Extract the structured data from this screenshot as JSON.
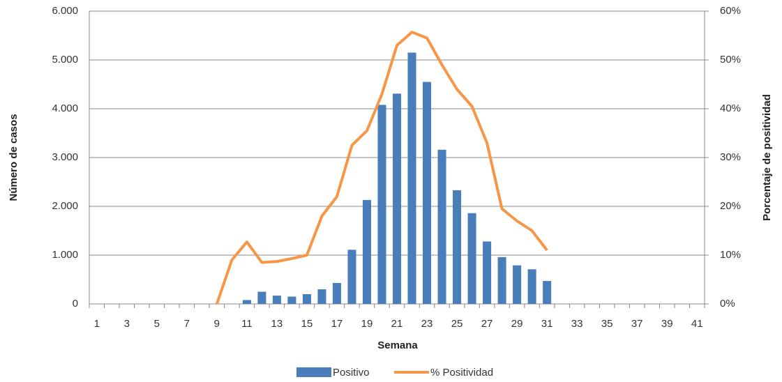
{
  "chart_data": {
    "type": "bar",
    "x_label": "Semana",
    "y_label": "Número de casos",
    "y2_label": "Porcentaje de positividad",
    "categories": [
      "1",
      null,
      "3",
      null,
      "5",
      null,
      "7",
      null,
      "9",
      null,
      "11",
      null,
      "13",
      null,
      "15",
      null,
      "17",
      null,
      "19",
      null,
      "21",
      null,
      "23",
      null,
      "25",
      null,
      "27",
      null,
      "29",
      null,
      "31",
      null,
      "33",
      null,
      "35",
      null,
      "37",
      null,
      "39",
      null,
      "41"
    ],
    "series": [
      {
        "name": "Positivo",
        "type": "bar",
        "color": "#4a7ebb",
        "values": [
          0,
          0,
          0,
          0,
          0,
          0,
          0,
          0,
          0,
          0,
          80,
          250,
          170,
          150,
          200,
          300,
          430,
          1110,
          2130,
          4080,
          4310,
          5150,
          4550,
          3160,
          2330,
          1860,
          1280,
          960,
          790,
          710,
          470,
          null,
          null,
          null,
          null,
          null,
          null,
          null,
          null,
          null,
          null
        ]
      },
      {
        "name": "% Positividad",
        "type": "line",
        "axis": "y2",
        "color": "#f79646",
        "values": [
          null,
          null,
          null,
          null,
          null,
          null,
          null,
          null,
          0,
          9,
          12.7,
          8.5,
          8.7,
          9.3,
          10,
          18,
          22,
          32.5,
          35.5,
          43,
          53,
          55.7,
          54.5,
          49,
          44,
          40.5,
          33,
          19.5,
          17,
          15,
          11,
          null,
          null,
          null,
          null,
          null,
          null,
          null,
          null,
          null,
          null
        ]
      }
    ],
    "ylim": [
      0,
      6000
    ],
    "yticks": [
      0,
      {
        "value": 1000,
        "label": "1.000"
      },
      {
        "value": 2000,
        "label": "2.000"
      },
      {
        "value": 3000,
        "label": "3.000"
      },
      {
        "value": 4000,
        "label": "4.000"
      },
      {
        "value": 5000,
        "label": "5.000"
      },
      {
        "value": 6000,
        "label": "6.000"
      }
    ],
    "y2lim": [
      0,
      60
    ],
    "y2ticks": [
      {
        "value": 0,
        "label": "0%"
      },
      {
        "value": 10,
        "label": "10%"
      },
      {
        "value": 20,
        "label": "20%"
      },
      {
        "value": 30,
        "label": "30%"
      },
      {
        "value": 40,
        "label": "40%"
      },
      {
        "value": 50,
        "label": "50%"
      },
      {
        "value": 60,
        "label": "60%"
      }
    ],
    "grid": true,
    "legend": "bottom"
  }
}
